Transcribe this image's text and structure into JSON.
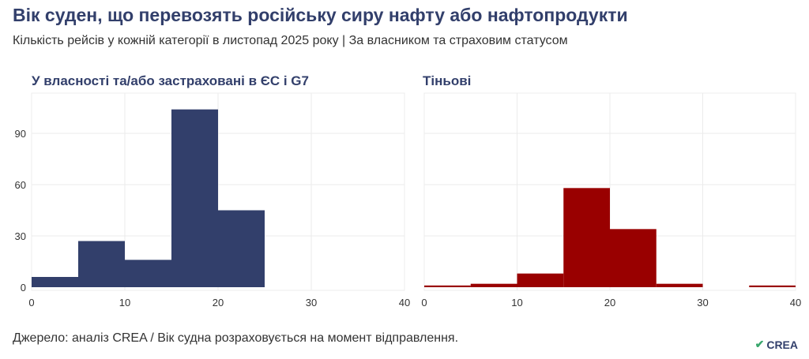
{
  "header": {
    "title": "Вік суден, що перевозять російську сиру нафту або нафтопродукти",
    "subtitle": "Кількість рейсів у кожній категорії в листопад 2025 року | За власником та страховим статусом"
  },
  "footer": {
    "source": "Джерело: аналіз CREA / Вік судна розраховується на момент відправлення.",
    "logo": "CREA"
  },
  "chart_data": [
    {
      "type": "bar",
      "title": "У власності та/або застраховані в ЄС і G7",
      "bin_edges": [
        0,
        5,
        10,
        15,
        20,
        25
      ],
      "values": [
        6,
        27,
        16,
        104,
        45
      ],
      "color": "#323f6b",
      "xlim": [
        0,
        40
      ],
      "ylim": [
        0,
        112
      ],
      "xticks": [
        "0",
        "10",
        "20",
        "30",
        "40"
      ],
      "yticks": [
        "0",
        "30",
        "60",
        "90"
      ],
      "grid": true
    },
    {
      "type": "bar",
      "title": "Тіньові",
      "bin_edges": [
        0,
        5,
        10,
        15,
        20,
        25,
        30,
        35,
        40
      ],
      "values": [
        1,
        2,
        8,
        58,
        34,
        2,
        0,
        1
      ],
      "color": "#990000",
      "xlim": [
        0,
        40
      ],
      "ylim": [
        0,
        112
      ],
      "xticks": [
        "0",
        "10",
        "20",
        "30",
        "40"
      ],
      "grid": true
    }
  ]
}
